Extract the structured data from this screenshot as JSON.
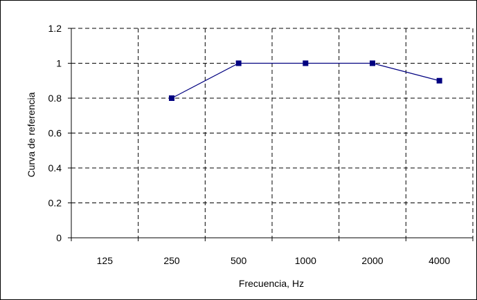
{
  "chart_data": {
    "type": "line",
    "title": "",
    "xlabel": "Frecuencia, Hz",
    "ylabel": "Curva de referencia",
    "categories": [
      "125",
      "250",
      "500",
      "1000",
      "2000",
      "4000"
    ],
    "ylim": [
      0,
      1.2
    ],
    "yticks": [
      "0",
      "0.2",
      "0.4",
      "0.6",
      "0.8",
      "1",
      "1.2"
    ],
    "ytick_values": [
      0,
      0.2,
      0.4,
      0.6,
      0.8,
      1,
      1.2
    ],
    "grid": true,
    "legend": "none",
    "series": [
      {
        "values": [
          null,
          0.8,
          1,
          1,
          1,
          0.9
        ],
        "color": "#000080"
      }
    ]
  }
}
